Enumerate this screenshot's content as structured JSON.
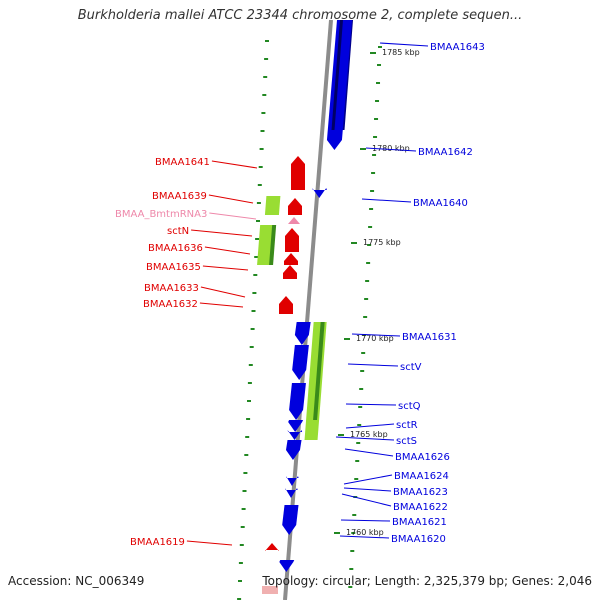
{
  "title": "Burkholderia mallei ATCC 23344 chromosome 2, complete sequen...",
  "accession": "Accession: NC_006349",
  "summary": "Topology: circular; Length: 2,325,379 bp; Genes: 2,046",
  "colors": {
    "forward": "#e00000",
    "reverse": "#0000dd",
    "rna": "#ee88aa",
    "feature": "#99dd33",
    "tick": "#228822",
    "backbone": "#8c8c8c"
  },
  "scale_labels": [
    "1785 kbp",
    "1780 kbp",
    "1775 kbp",
    "1770 kbp",
    "1765 kbp",
    "1760 kbp"
  ],
  "gene_labels_left": [
    "BMAA1641",
    "BMAA1639",
    "BMAA_BmtmRNA3",
    "sctN",
    "BMAA1636",
    "BMAA1635",
    "BMAA1633",
    "BMAA1632",
    "BMAA1619"
  ],
  "gene_labels_right": [
    "BMAA1643",
    "BMAA1642",
    "BMAA1640",
    "BMAA1631",
    "sctV",
    "sctQ",
    "sctR",
    "sctS",
    "BMAA1626",
    "BMAA1624",
    "BMAA1623",
    "BMAA1622",
    "BMAA1621",
    "BMAA1620"
  ]
}
